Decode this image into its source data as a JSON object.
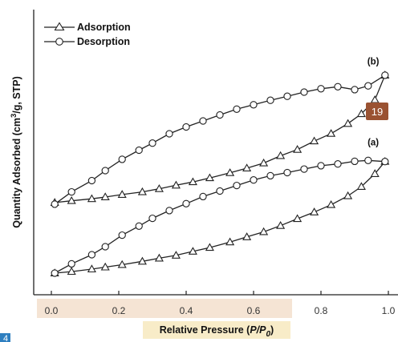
{
  "chart_data": {
    "type": "line",
    "xlabel_prefix": "Relative Pressure (",
    "xlabel_var": "P/P",
    "xlabel_sub": "0",
    "xlabel_suffix": ")",
    "ylabel_prefix": "Quantity Adsorbed (cm",
    "ylabel_sup": "3",
    "ylabel_suffix": "/g, STP)",
    "xlim": [
      0.0,
      1.0
    ],
    "ylim": [
      0,
      100
    ],
    "x_ticks": [
      "0.0",
      "0.2",
      "0.4",
      "0.6",
      "0.8",
      "1.0"
    ],
    "x_tick_values": [
      0.0,
      0.2,
      0.4,
      0.6,
      0.8,
      1.0
    ],
    "legend_position": "top-left",
    "legend": [
      {
        "label": "Adsorption",
        "marker": "triangle"
      },
      {
        "label": "Desorption",
        "marker": "circle"
      }
    ],
    "series": [
      {
        "name": "Adsorption",
        "sample": "(a)",
        "marker": "triangle",
        "x": [
          0.01,
          0.06,
          0.12,
          0.16,
          0.21,
          0.27,
          0.32,
          0.37,
          0.42,
          0.47,
          0.53,
          0.58,
          0.63,
          0.68,
          0.73,
          0.78,
          0.83,
          0.88,
          0.92,
          0.96,
          0.99
        ],
        "y": [
          0.0,
          0.7,
          1.8,
          2.7,
          3.8,
          5.3,
          6.7,
          8.0,
          9.8,
          11.5,
          14.0,
          16.3,
          18.6,
          21.4,
          24.5,
          27.5,
          30.8,
          34.8,
          39.0,
          44.8,
          50.3
        ]
      },
      {
        "name": "Desorption",
        "sample": "(a)",
        "marker": "circle",
        "x": [
          0.99,
          0.94,
          0.9,
          0.85,
          0.8,
          0.75,
          0.7,
          0.65,
          0.6,
          0.55,
          0.5,
          0.45,
          0.4,
          0.35,
          0.3,
          0.26,
          0.21,
          0.16,
          0.12,
          0.06,
          0.01
        ],
        "y": [
          50.3,
          50.8,
          50.4,
          49.2,
          48.4,
          46.9,
          45.3,
          43.9,
          42.0,
          39.5,
          37.0,
          34.5,
          31.3,
          28.2,
          24.7,
          21.2,
          17.1,
          11.9,
          8.3,
          4.2,
          0.0
        ]
      },
      {
        "name": "Adsorption",
        "sample": "(b)",
        "marker": "triangle",
        "x": [
          0.01,
          0.06,
          0.12,
          0.16,
          0.21,
          0.27,
          0.32,
          0.37,
          0.42,
          0.47,
          0.53,
          0.58,
          0.63,
          0.68,
          0.73,
          0.78,
          0.83,
          0.88,
          0.92,
          0.96,
          0.99
        ],
        "y": [
          31.8,
          32.6,
          33.5,
          34.3,
          35.4,
          36.6,
          38.0,
          39.6,
          41.1,
          42.9,
          45.2,
          47.3,
          49.6,
          52.9,
          55.7,
          59.5,
          62.9,
          67.4,
          71.8,
          78.1,
          89.2
        ]
      },
      {
        "name": "Desorption",
        "sample": "(b)",
        "marker": "circle",
        "x": [
          0.99,
          0.94,
          0.9,
          0.85,
          0.8,
          0.75,
          0.7,
          0.65,
          0.6,
          0.55,
          0.5,
          0.45,
          0.4,
          0.35,
          0.3,
          0.26,
          0.21,
          0.16,
          0.12,
          0.06,
          0.01
        ],
        "y": [
          89.2,
          84.4,
          82.7,
          84.0,
          83.1,
          81.6,
          79.7,
          77.9,
          75.9,
          73.9,
          71.3,
          68.6,
          65.9,
          62.8,
          58.6,
          55.4,
          51.3,
          46.2,
          41.7,
          36.6,
          31.1
        ]
      }
    ],
    "annotations": [
      {
        "text": "(b)",
        "x": 0.955,
        "y": 94.0
      },
      {
        "text": "(a)",
        "x": 0.955,
        "y": 57.5
      }
    ],
    "badge": {
      "text": "19",
      "color": "#9a5232"
    },
    "corner_label": {
      "text": "4",
      "color": "#2e7fc0"
    }
  }
}
